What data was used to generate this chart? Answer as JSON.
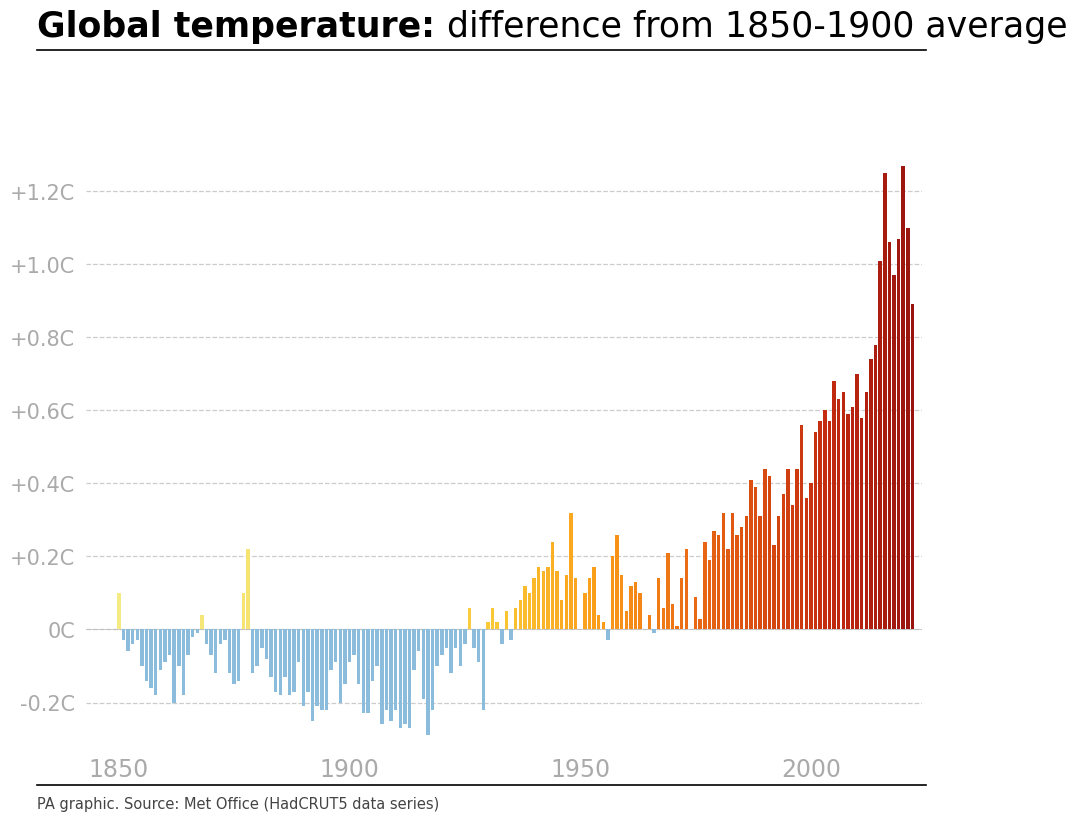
{
  "title_bold": "Global temperature:",
  "title_normal": " difference from 1850-1900 average",
  "source": "PA graphic. Source: Met Office (HadCRUT5 data series)",
  "ylim": [
    -0.32,
    1.45
  ],
  "yticks": [
    -0.2,
    0.0,
    0.2,
    0.4,
    0.6,
    0.8,
    1.0,
    1.2
  ],
  "ytick_labels": [
    "-0.2C",
    "0C",
    "+0.2C",
    "+0.4C",
    "+0.6C",
    "+0.8C",
    "+1.0C",
    "+1.2C"
  ],
  "years": [
    1850,
    1851,
    1852,
    1853,
    1854,
    1855,
    1856,
    1857,
    1858,
    1859,
    1860,
    1861,
    1862,
    1863,
    1864,
    1865,
    1866,
    1867,
    1868,
    1869,
    1870,
    1871,
    1872,
    1873,
    1874,
    1875,
    1876,
    1877,
    1878,
    1879,
    1880,
    1881,
    1882,
    1883,
    1884,
    1885,
    1886,
    1887,
    1888,
    1889,
    1890,
    1891,
    1892,
    1893,
    1894,
    1895,
    1896,
    1897,
    1898,
    1899,
    1900,
    1901,
    1902,
    1903,
    1904,
    1905,
    1906,
    1907,
    1908,
    1909,
    1910,
    1911,
    1912,
    1913,
    1914,
    1915,
    1916,
    1917,
    1918,
    1919,
    1920,
    1921,
    1922,
    1923,
    1924,
    1925,
    1926,
    1927,
    1928,
    1929,
    1930,
    1931,
    1932,
    1933,
    1934,
    1935,
    1936,
    1937,
    1938,
    1939,
    1940,
    1941,
    1942,
    1943,
    1944,
    1945,
    1946,
    1947,
    1948,
    1949,
    1950,
    1951,
    1952,
    1953,
    1954,
    1955,
    1956,
    1957,
    1958,
    1959,
    1960,
    1961,
    1962,
    1963,
    1964,
    1965,
    1966,
    1967,
    1968,
    1969,
    1970,
    1971,
    1972,
    1973,
    1974,
    1975,
    1976,
    1977,
    1978,
    1979,
    1980,
    1981,
    1982,
    1983,
    1984,
    1985,
    1986,
    1987,
    1988,
    1989,
    1990,
    1991,
    1992,
    1993,
    1994,
    1995,
    1996,
    1997,
    1998,
    1999,
    2000,
    2001,
    2002,
    2003,
    2004,
    2005,
    2006,
    2007,
    2008,
    2009,
    2010,
    2011,
    2012,
    2013,
    2014,
    2015,
    2016,
    2017,
    2018,
    2019,
    2020,
    2021,
    2022
  ],
  "values": [
    0.1,
    -0.03,
    -0.06,
    -0.04,
    -0.03,
    -0.1,
    -0.14,
    -0.16,
    -0.18,
    -0.11,
    -0.09,
    -0.07,
    -0.2,
    -0.1,
    -0.18,
    -0.07,
    -0.02,
    -0.01,
    0.04,
    -0.04,
    -0.07,
    -0.12,
    -0.04,
    -0.03,
    -0.12,
    -0.15,
    -0.14,
    0.1,
    0.22,
    -0.12,
    -0.1,
    -0.05,
    -0.08,
    -0.13,
    -0.17,
    -0.18,
    -0.13,
    -0.18,
    -0.17,
    -0.09,
    -0.21,
    -0.17,
    -0.25,
    -0.21,
    -0.22,
    -0.22,
    -0.11,
    -0.09,
    -0.2,
    -0.15,
    -0.09,
    -0.07,
    -0.15,
    -0.23,
    -0.23,
    -0.14,
    -0.1,
    -0.26,
    -0.22,
    -0.25,
    -0.22,
    -0.27,
    -0.26,
    -0.27,
    -0.11,
    -0.06,
    -0.19,
    -0.29,
    -0.22,
    -0.1,
    -0.07,
    -0.05,
    -0.12,
    -0.05,
    -0.1,
    -0.04,
    0.06,
    -0.05,
    -0.09,
    -0.22,
    0.02,
    0.06,
    0.02,
    -0.04,
    0.05,
    -0.03,
    0.06,
    0.08,
    0.12,
    0.1,
    0.14,
    0.17,
    0.16,
    0.17,
    0.24,
    0.16,
    0.08,
    0.15,
    0.32,
    0.14,
    0.0,
    0.1,
    0.14,
    0.17,
    0.04,
    0.02,
    -0.03,
    0.2,
    0.26,
    0.15,
    0.05,
    0.12,
    0.13,
    0.1,
    0.0,
    0.04,
    -0.01,
    0.14,
    0.06,
    0.21,
    0.07,
    0.01,
    0.14,
    0.22,
    0.0,
    0.09,
    0.03,
    0.24,
    0.19,
    0.27,
    0.26,
    0.32,
    0.22,
    0.32,
    0.26,
    0.28,
    0.31,
    0.41,
    0.39,
    0.31,
    0.44,
    0.42,
    0.23,
    0.31,
    0.37,
    0.44,
    0.34,
    0.44,
    0.56,
    0.36,
    0.4,
    0.54,
    0.57,
    0.6,
    0.57,
    0.68,
    0.63,
    0.65,
    0.59,
    0.61,
    0.7,
    0.58,
    0.65,
    0.74,
    0.78,
    1.01,
    1.25,
    1.06,
    0.97,
    1.07,
    1.27,
    1.1,
    0.89
  ],
  "blue_color": "#8BBCDB",
  "year_start": 1850,
  "year_end": 2022
}
